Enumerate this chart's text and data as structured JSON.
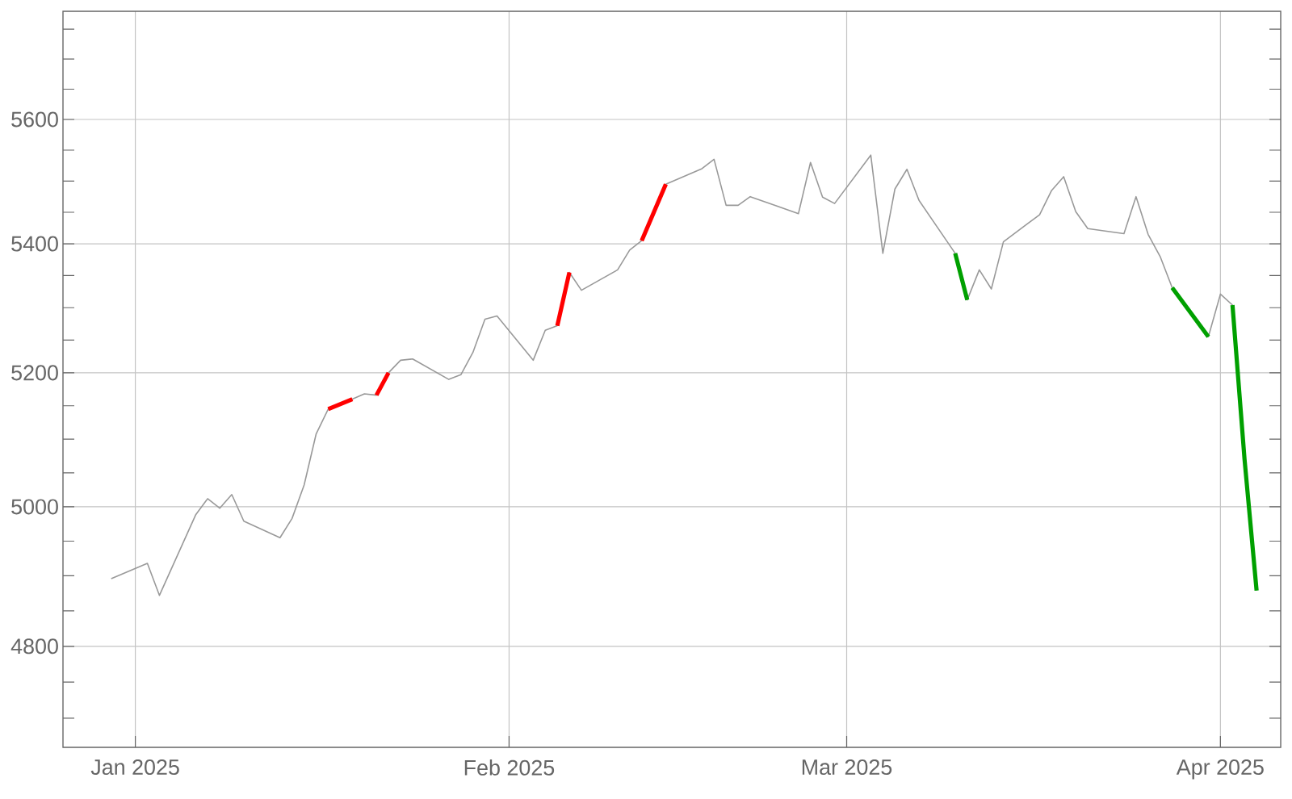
{
  "chart_data": {
    "type": "line",
    "log": true,
    "grid": true,
    "xlim": [
      "2024-12-26",
      "2025-04-06"
    ],
    "xticks": [
      {
        "value": "2025-01-01",
        "label": "Jan 2025"
      },
      {
        "value": "2025-02-01",
        "label": "Feb 2025"
      },
      {
        "value": "2025-03-01",
        "label": "Mar 2025"
      },
      {
        "value": "2025-04-01",
        "label": "Apr 2025"
      }
    ],
    "ylim": [
      4660,
      5780
    ],
    "yticks": [
      {
        "value": 4700,
        "label": null
      },
      {
        "value": 4750,
        "label": null
      },
      4800,
      {
        "value": 4850,
        "label": null
      },
      {
        "value": 4900,
        "label": null
      },
      {
        "value": 4950,
        "label": null
      },
      5000,
      {
        "value": 5050,
        "label": null
      },
      {
        "value": 5100,
        "label": null
      },
      {
        "value": 5150,
        "label": null
      },
      5200,
      {
        "value": 5250,
        "label": null
      },
      {
        "value": 5300,
        "label": null
      },
      {
        "value": 5350,
        "label": null
      },
      5400,
      {
        "value": 5450,
        "label": null
      },
      {
        "value": 5500,
        "label": null
      },
      {
        "value": 5550,
        "label": null
      },
      5600,
      {
        "value": 5650,
        "label": null
      },
      {
        "value": 5700,
        "label": null
      },
      {
        "value": 5750,
        "label": null
      }
    ],
    "x": [
      "2024-12-30",
      "2025-01-02",
      "2025-01-03",
      "2025-01-06",
      "2025-01-07",
      "2025-01-08",
      "2025-01-09",
      "2025-01-10",
      "2025-01-13",
      "2025-01-14",
      "2025-01-15",
      "2025-01-16",
      "2025-01-17",
      "2025-01-19",
      "2025-01-20",
      "2025-01-21",
      "2025-01-22",
      "2025-01-23",
      "2025-01-24",
      "2025-01-27",
      "2025-01-28",
      "2025-01-29",
      "2025-01-30",
      "2025-01-31",
      "2025-02-03",
      "2025-02-04",
      "2025-02-05",
      "2025-02-06",
      "2025-02-07",
      "2025-02-10",
      "2025-02-11",
      "2025-02-12",
      "2025-02-14",
      "2025-02-17",
      "2025-02-18",
      "2025-02-19",
      "2025-02-20",
      "2025-02-21",
      "2025-02-25",
      "2025-02-26",
      "2025-02-27",
      "2025-02-28",
      "2025-03-03",
      "2025-03-04",
      "2025-03-05",
      "2025-03-06",
      "2025-03-07",
      "2025-03-10",
      "2025-03-11",
      "2025-03-12",
      "2025-03-13",
      "2025-03-14",
      "2025-03-17",
      "2025-03-18",
      "2025-03-19",
      "2025-03-20",
      "2025-03-21",
      "2025-03-24",
      "2025-03-25",
      "2025-03-26",
      "2025-03-27",
      "2025-03-28",
      "2025-03-31",
      "2025-04-01",
      "2025-04-02",
      "2025-04-03",
      "2025-04-04"
    ],
    "series": [
      {
        "color": "#999999",
        "values": [
          4896,
          4918,
          4872,
          4988,
          5012,
          4998,
          5018,
          4979,
          4955,
          4983,
          5032,
          5108,
          5145,
          5160,
          5168,
          5166,
          5200,
          5219,
          5221,
          5190,
          5197,
          5231,
          5282,
          5287,
          5219,
          5265,
          5272,
          5355,
          5327,
          5359,
          5390,
          5405,
          5495,
          5520,
          5535,
          5461,
          5461,
          5475,
          5448,
          5530,
          5474,
          5464,
          5542,
          5385,
          5487,
          5519,
          5469,
          5385,
          5312,
          5359,
          5329,
          5403,
          5446,
          5485,
          5507,
          5451,
          5424,
          5416,
          5475,
          5415,
          5380,
          5331,
          5255,
          5321,
          5304,
          5070,
          4879
        ]
      },
      {
        "color": "#ff0000",
        "x": [
          "2025-01-17",
          "2025-01-19",
          "2025-01-20",
          "2025-01-21",
          "2025-01-22",
          "2025-02-01",
          "2025-02-05",
          "2025-02-06",
          "2025-02-09",
          "2025-02-12",
          "2025-02-14"
        ],
        "values": [
          5145,
          5160,
          null,
          5166,
          5200,
          null,
          5272,
          5355,
          null,
          5405,
          5495
        ]
      },
      {
        "color": "#00a000",
        "x": [
          "2025-03-10",
          "2025-03-11",
          "2025-03-20",
          "2025-03-28",
          "2025-03-31",
          "2025-04-01",
          "2025-04-02",
          "2025-04-03",
          "2025-04-04"
        ],
        "values": [
          5385,
          5312,
          null,
          5331,
          5255,
          null,
          5304,
          5070,
          4879
        ]
      }
    ]
  }
}
